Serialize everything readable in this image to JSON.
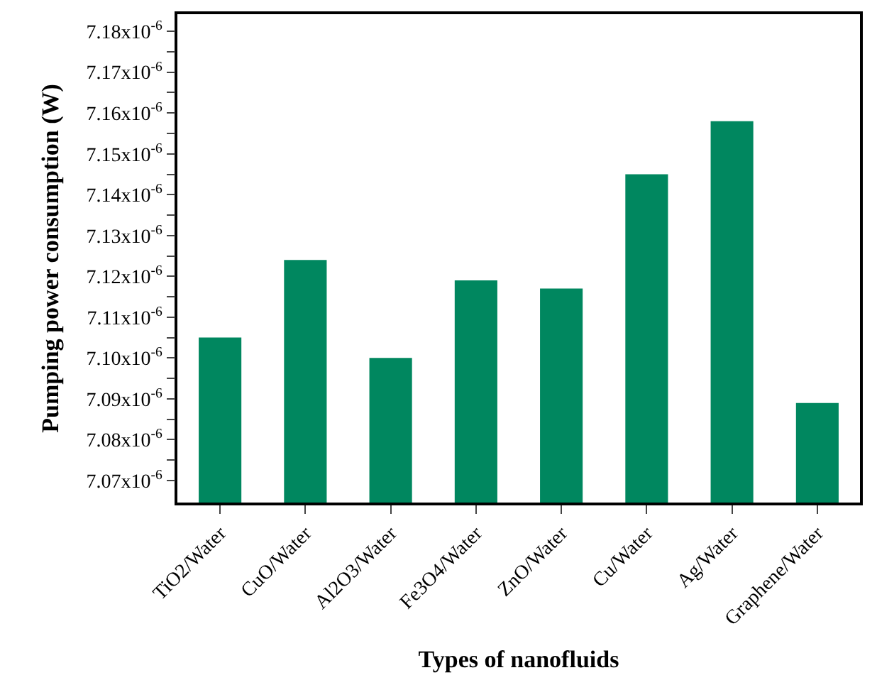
{
  "chart_data": {
    "type": "bar",
    "xlabel": "Types of nanofluids",
    "ylabel": "Pumping power consumption (W)",
    "categories": [
      "TiO2/Water",
      "CuO/Water",
      "Al2O3/Water",
      "Fe3O4/Water",
      "ZnO/Water",
      "Cu/Water",
      "Ag/Water",
      "Graphene/Water"
    ],
    "values": [
      7.105e-06,
      7.124e-06,
      7.1e-06,
      7.119e-06,
      7.117e-06,
      7.145e-06,
      7.158e-06,
      7.089e-06
    ],
    "color": "#00875f",
    "ylim": [
      7.0646e-06,
      7.1842e-06
    ],
    "yticks": [
      {
        "value": 7.07e-06,
        "label": "7.07x10$^{-6}$"
      },
      {
        "value": 7.075e-06,
        "label": null
      },
      {
        "value": 7.08e-06,
        "label": "7.08x10$^{-6}$"
      },
      {
        "value": 7.085e-06,
        "label": null
      },
      {
        "value": 7.09e-06,
        "label": "7.09x10$^{-6}$"
      },
      {
        "value": 7.095e-06,
        "label": null
      },
      {
        "value": 7.1e-06,
        "label": "7.10x10$^{-6}$"
      },
      {
        "value": 7.105e-06,
        "label": null
      },
      {
        "value": 7.11e-06,
        "label": "7.11x10$^{-6}$"
      },
      {
        "value": 7.115e-06,
        "label": null
      },
      {
        "value": 7.12e-06,
        "label": "7.12x10$^{-6}$"
      },
      {
        "value": 7.125e-06,
        "label": null
      },
      {
        "value": 7.13e-06,
        "label": "7.13x10$^{-6}$"
      },
      {
        "value": 7.135e-06,
        "label": null
      },
      {
        "value": 7.14e-06,
        "label": "7.14x10$^{-6}$"
      },
      {
        "value": 7.145e-06,
        "label": null
      },
      {
        "value": 7.15e-06,
        "label": "7.15x10$^{-6}$"
      },
      {
        "value": 7.155e-06,
        "label": null
      },
      {
        "value": 7.16e-06,
        "label": "7.16x10$^{-6}$"
      },
      {
        "value": 7.165e-06,
        "label": null
      },
      {
        "value": 7.17e-06,
        "label": "7.17x10$^{-6}$"
      },
      {
        "value": 7.175e-06,
        "label": null
      },
      {
        "value": 7.18e-06,
        "label": "7.18x10$^{-6}$"
      }
    ]
  }
}
